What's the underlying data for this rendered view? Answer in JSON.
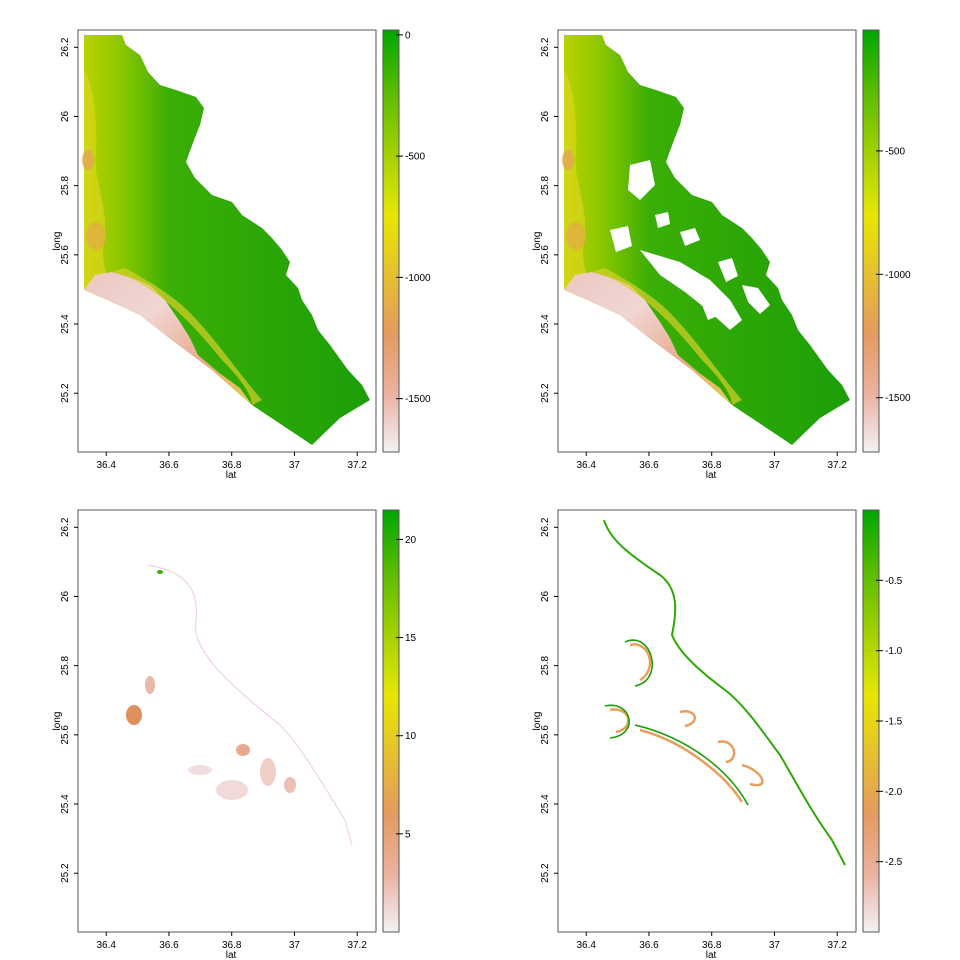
{
  "chart_data": [
    {
      "type": "heatmap",
      "xlabel": "lat",
      "ylabel": "long",
      "x_ticks": [
        "36.4",
        "36.6",
        "36.8",
        "37",
        "37.2"
      ],
      "y_ticks": [
        "25.2",
        "25.4",
        "25.6",
        "25.8",
        "26",
        "26.2"
      ],
      "xlim": [
        36.31,
        37.26
      ],
      "ylim": [
        25.03,
        26.25
      ],
      "legend_ticks": [
        "0",
        "-500",
        "-1000",
        "-1500"
      ],
      "legend_tick_values": [
        0,
        -500,
        -1000,
        -1500
      ],
      "legend_range": [
        -1720,
        20
      ]
    },
    {
      "type": "heatmap",
      "xlabel": "lat",
      "ylabel": "long",
      "x_ticks": [
        "36.4",
        "36.6",
        "36.8",
        "37",
        "37.2"
      ],
      "y_ticks": [
        "25.2",
        "25.4",
        "25.6",
        "25.8",
        "26",
        "26.2"
      ],
      "xlim": [
        36.31,
        37.26
      ],
      "ylim": [
        25.03,
        26.25
      ],
      "legend_ticks": [
        "-500",
        "-1000",
        "-1500"
      ],
      "legend_tick_values": [
        -500,
        -1000,
        -1500
      ],
      "legend_range": [
        -1720,
        -10
      ]
    },
    {
      "type": "heatmap",
      "xlabel": "lat",
      "ylabel": "long",
      "x_ticks": [
        "36.4",
        "36.6",
        "36.8",
        "37",
        "37.2"
      ],
      "y_ticks": [
        "25.2",
        "25.4",
        "25.6",
        "25.8",
        "26",
        "26.2"
      ],
      "xlim": [
        36.31,
        37.26
      ],
      "ylim": [
        25.03,
        26.25
      ],
      "legend_ticks": [
        "20",
        "15",
        "10",
        "5"
      ],
      "legend_tick_values": [
        20,
        15,
        10,
        5
      ],
      "legend_range": [
        0,
        21.5
      ]
    },
    {
      "type": "heatmap",
      "xlabel": "lat",
      "ylabel": "long",
      "x_ticks": [
        "36.4",
        "36.6",
        "36.8",
        "37",
        "37.2"
      ],
      "y_ticks": [
        "25.2",
        "25.4",
        "25.6",
        "25.8",
        "26",
        "26.2"
      ],
      "xlim": [
        36.31,
        37.26
      ],
      "ylim": [
        25.03,
        26.25
      ],
      "legend_ticks": [
        "-0.5",
        "-1.0",
        "-1.5",
        "-2.0",
        "-2.5"
      ],
      "legend_tick_values": [
        -0.5,
        -1.0,
        -1.5,
        -2.0,
        -2.5
      ],
      "legend_range": [
        -3.0,
        0.0
      ]
    }
  ],
  "colors": {
    "ramp": [
      "#f2f2f2",
      "#ebb0a0",
      "#e59a60",
      "#e6c030",
      "#e6e600",
      "#a6d200",
      "#5cbc00",
      "#00a600"
    ],
    "land_green": "#1f9e0a",
    "frame": "#555555"
  }
}
